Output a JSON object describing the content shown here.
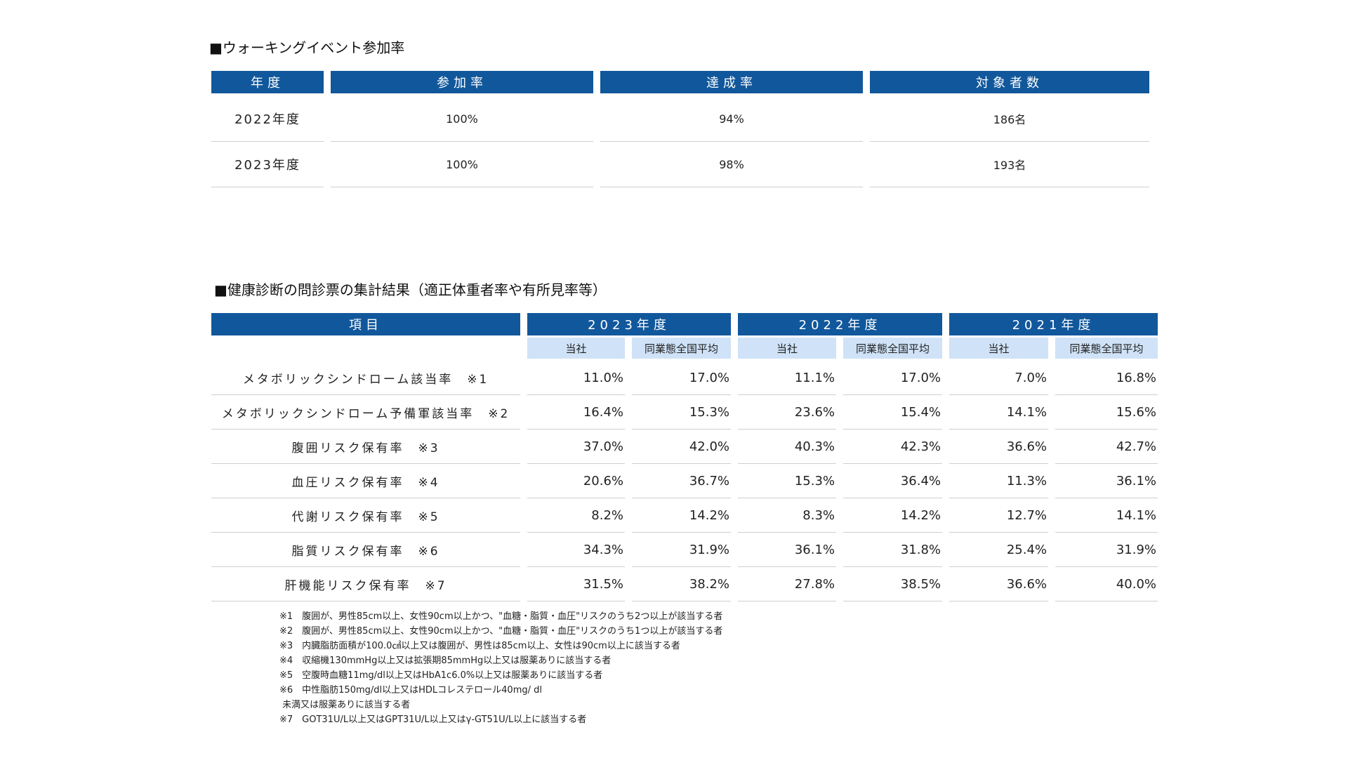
{
  "walking": {
    "title": "■ウォーキングイベント参加率",
    "headers": [
      "年度",
      "参加率",
      "達成率",
      "対象者数"
    ],
    "rows": [
      [
        "2022年度",
        "100%",
        "94%",
        "186名"
      ],
      [
        "2023年度",
        "100%",
        "98%",
        "193名"
      ]
    ]
  },
  "health": {
    "title": "■健康診断の問診票の集計結果（適正体重者率や有所見率等）",
    "item_header": "項目",
    "years": [
      "2023年度",
      "2022年度",
      "2021年度"
    ],
    "sub_headers": [
      "当社",
      "同業態全国平均"
    ],
    "rows": [
      {
        "label": "メタボリックシンドローム該当率　※1",
        "values": [
          "11.0%",
          "17.0%",
          "11.1%",
          "17.0%",
          "7.0%",
          "16.8%"
        ]
      },
      {
        "label": "メタボリックシンドローム予備軍該当率　※2",
        "values": [
          "16.4%",
          "15.3%",
          "23.6%",
          "15.4%",
          "14.1%",
          "15.6%"
        ]
      },
      {
        "label": "腹囲リスク保有率　※3",
        "values": [
          "37.0%",
          "42.0%",
          "40.3%",
          "42.3%",
          "36.6%",
          "42.7%"
        ]
      },
      {
        "label": "血圧リスク保有率　※4",
        "values": [
          "20.6%",
          "36.7%",
          "15.3%",
          "36.4%",
          "11.3%",
          "36.1%"
        ]
      },
      {
        "label": "代謝リスク保有率　※5",
        "values": [
          "8.2%",
          "14.2%",
          "8.3%",
          "14.2%",
          "12.7%",
          "14.1%"
        ]
      },
      {
        "label": "脂質リスク保有率　※6",
        "values": [
          "34.3%",
          "31.9%",
          "36.1%",
          "31.8%",
          "25.4%",
          "31.9%"
        ]
      },
      {
        "label": "肝機能リスク保有率　※7",
        "values": [
          "31.5%",
          "38.2%",
          "27.8%",
          "38.5%",
          "36.6%",
          "40.0%"
        ]
      }
    ],
    "notes": [
      "※1　腹囲が、男性85cm以上、女性90cm以上かつ、\"血糖・脂質・血圧\"リスクのうち2つ以上が該当する者",
      "※2　腹囲が、男性85cm以上、女性90cm以上かつ、\"血糖・脂質・血圧\"リスクのうち1つ以上が該当する者",
      "※3　内臓脂肪面積が100.0㎠以上又は腹囲が、男性は85cm以上、女性は90cm以上に該当する者",
      "※4　収縮機130mmHg以上又は拡張期85mmHg以上又は服薬ありに該当する者",
      "※5　空腹時血糖11mg/dl以上又はHbA1c6.0%以上又は服薬ありに該当する者",
      "※6　中性脂肪150mg/dl以上又はHDLコレステロール40mg/ dl\n 未満又は服薬ありに該当する者",
      "※7　GOT31U/L以上又はGPT31U/L以上又はγ-GT51U/L以上に該当する者"
    ]
  }
}
